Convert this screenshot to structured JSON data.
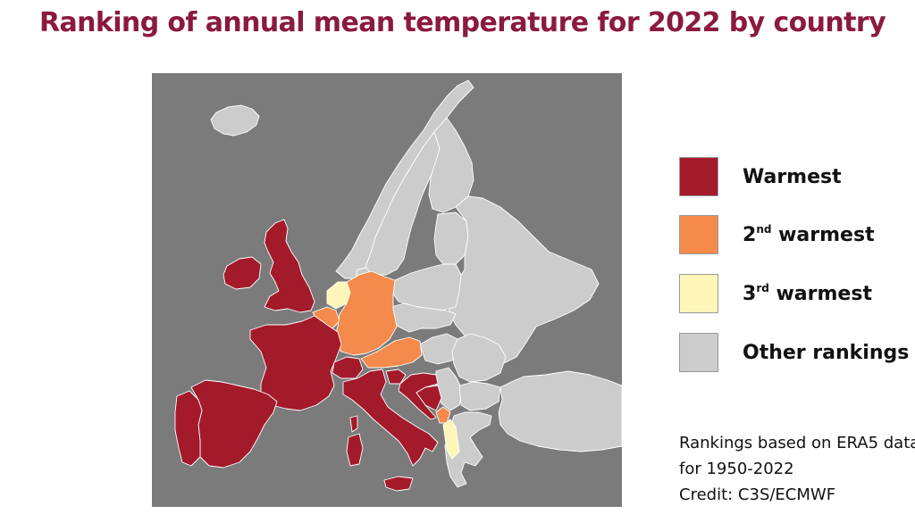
{
  "title": "Ranking of annual mean temperature for 2022 by country",
  "colors": {
    "warmest": "#a31a2b",
    "second": "#f48a4c",
    "third": "#fef6b8",
    "other": "#cccccc",
    "sea": "#7b7b7b",
    "border": "#ffffff"
  },
  "legend": [
    {
      "key": "warmest",
      "label": "Warmest",
      "sup": ""
    },
    {
      "key": "second",
      "label_pre": "2",
      "sup": "nd",
      "label": " warmest"
    },
    {
      "key": "third",
      "label_pre": "3",
      "sup": "rd",
      "label": " warmest"
    },
    {
      "key": "other",
      "label": "Other rankings",
      "sup": ""
    }
  ],
  "note": {
    "line1": "Rankings based on ERA5 data",
    "line2": "for 1950-2022",
    "line3": "Credit: C3S/ECMWF"
  },
  "rankings": {
    "warmest": [
      "France",
      "Spain",
      "Portugal",
      "United Kingdom",
      "Ireland",
      "Italy",
      "Switzerland",
      "Slovenia",
      "Croatia",
      "Bosnia and Herzegovina"
    ],
    "second": [
      "Germany",
      "Belgium",
      "Austria",
      "Montenegro"
    ],
    "third": [
      "Netherlands",
      "Albania"
    ],
    "other": [
      "Iceland",
      "Norway",
      "Sweden",
      "Finland",
      "Denmark",
      "Poland",
      "Czechia",
      "Slovakia",
      "Hungary",
      "Romania",
      "Bulgaria",
      "Greece",
      "Serbia",
      "Ukraine",
      "Belarus",
      "Lithuania",
      "Latvia",
      "Estonia",
      "Russia",
      "Turkey",
      "Moldova",
      "North Macedonia"
    ]
  }
}
